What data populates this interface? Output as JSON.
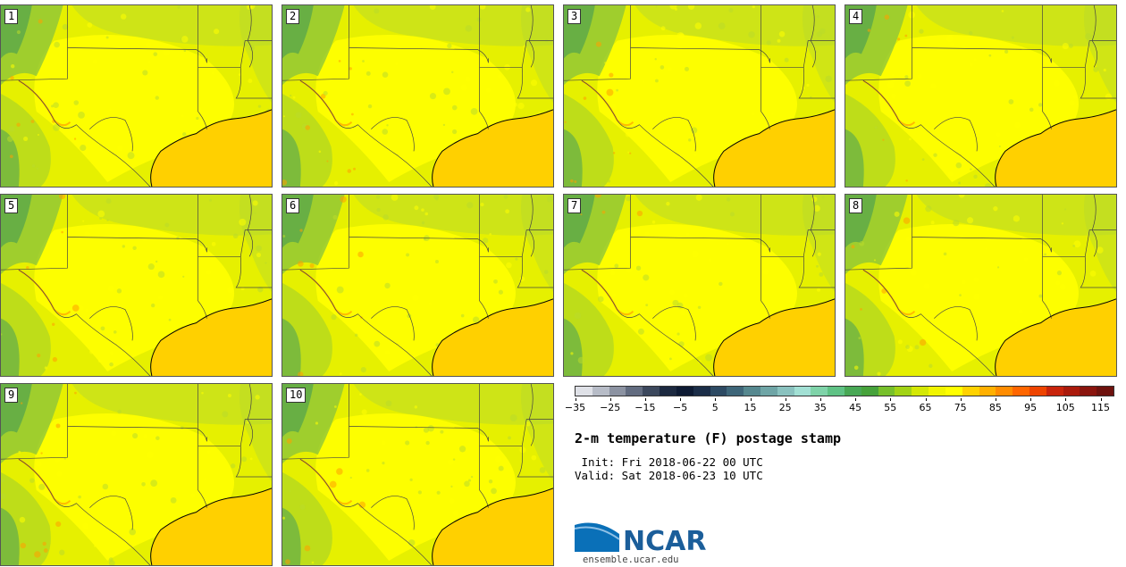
{
  "panels": [
    {
      "label": "1"
    },
    {
      "label": "2"
    },
    {
      "label": "3"
    },
    {
      "label": "4"
    },
    {
      "label": "5"
    },
    {
      "label": "6"
    },
    {
      "label": "7"
    },
    {
      "label": "8"
    },
    {
      "label": "9"
    },
    {
      "label": "10"
    }
  ],
  "colorbar": {
    "colors": [
      "#dfe1e7",
      "#b7bcc7",
      "#8c93a2",
      "#626c80",
      "#3c485d",
      "#1c2940",
      "#0d1a33",
      "#1b2d48",
      "#2d4a63",
      "#3e6679",
      "#56888f",
      "#6fa5a6",
      "#8ac2bf",
      "#a2e0d4",
      "#7fd3a9",
      "#5fc285",
      "#48a855",
      "#46a23b",
      "#77c02b",
      "#a2d315",
      "#d4e805",
      "#f1f500",
      "#ffff00",
      "#ffd200",
      "#ffb000",
      "#ff8c00",
      "#ff6600",
      "#ee4400",
      "#c8240c",
      "#aa1a0c",
      "#8a150e",
      "#6e120e"
    ],
    "ticks": [
      "−35",
      "−25",
      "−15",
      "−5",
      "5",
      "15",
      "25",
      "35",
      "45",
      "55",
      "65",
      "75",
      "85",
      "95",
      "105",
      "115"
    ]
  },
  "title": "2-m temperature (F) postage stamp",
  "init": " Init: Fri 2018-06-22 00 UTC",
  "valid": "Valid: Sat 2018-06-23 10 UTC",
  "logo": {
    "text": "NCAR",
    "color": "#1b5e9a"
  },
  "website": "ensemble.ucar.edu",
  "map_colors": {
    "land": "#e6f000",
    "hot": "#ffff00",
    "warm": "#ffd000",
    "cool": "#bada2a",
    "cooler": "#8dc638",
    "cold": "#5aa84a",
    "gulf": "#ffd000",
    "orange": "#ff9e00"
  }
}
